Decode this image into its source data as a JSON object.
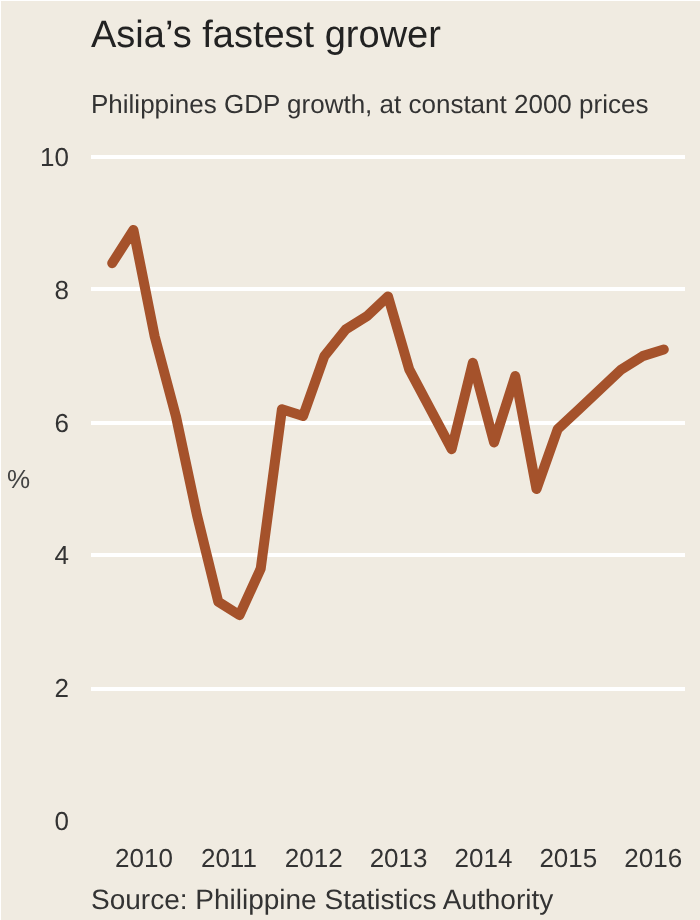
{
  "chart_data": {
    "type": "line",
    "title": "Asia’s fastest grower",
    "subtitle": "Philippines GDP growth, at constant 2000 prices",
    "ylabel": "%",
    "x": [
      2010,
      2010.25,
      2010.5,
      2010.75,
      2011,
      2011.25,
      2011.5,
      2011.75,
      2012,
      2012.25,
      2012.5,
      2012.75,
      2013,
      2013.25,
      2013.5,
      2013.75,
      2014,
      2014.25,
      2014.5,
      2014.75,
      2015,
      2015.25,
      2015.5,
      2015.75,
      2016,
      2016.25,
      2016.5
    ],
    "series": [
      {
        "color": "#a5522b",
        "values": [
          8.4,
          8.9,
          7.3,
          6.1,
          4.6,
          3.3,
          3.1,
          3.8,
          6.2,
          6.1,
          7.0,
          7.4,
          7.6,
          7.9,
          6.8,
          6.2,
          5.6,
          6.9,
          5.7,
          6.7,
          5.0,
          5.9,
          6.2,
          6.5,
          6.8,
          7.0,
          7.1
        ]
      }
    ],
    "xlim": [
      2009.75,
      2016.75
    ],
    "xticks": [
      {
        "value": 2010.375,
        "label": "2010"
      },
      {
        "value": 2011.375,
        "label": "2011"
      },
      {
        "value": 2012.375,
        "label": "2012"
      },
      {
        "value": 2013.375,
        "label": "2013"
      },
      {
        "value": 2014.375,
        "label": "2014"
      },
      {
        "value": 2015.375,
        "label": "2015"
      },
      {
        "value": 2016.375,
        "label": "2016"
      }
    ],
    "ylim": [
      0,
      10.3
    ],
    "yticks": [
      0,
      2,
      4,
      6,
      8,
      10
    ],
    "grid": "y",
    "line_style": "solid",
    "annotations": [
      "Source: Philippine Statistics Authority"
    ]
  }
}
